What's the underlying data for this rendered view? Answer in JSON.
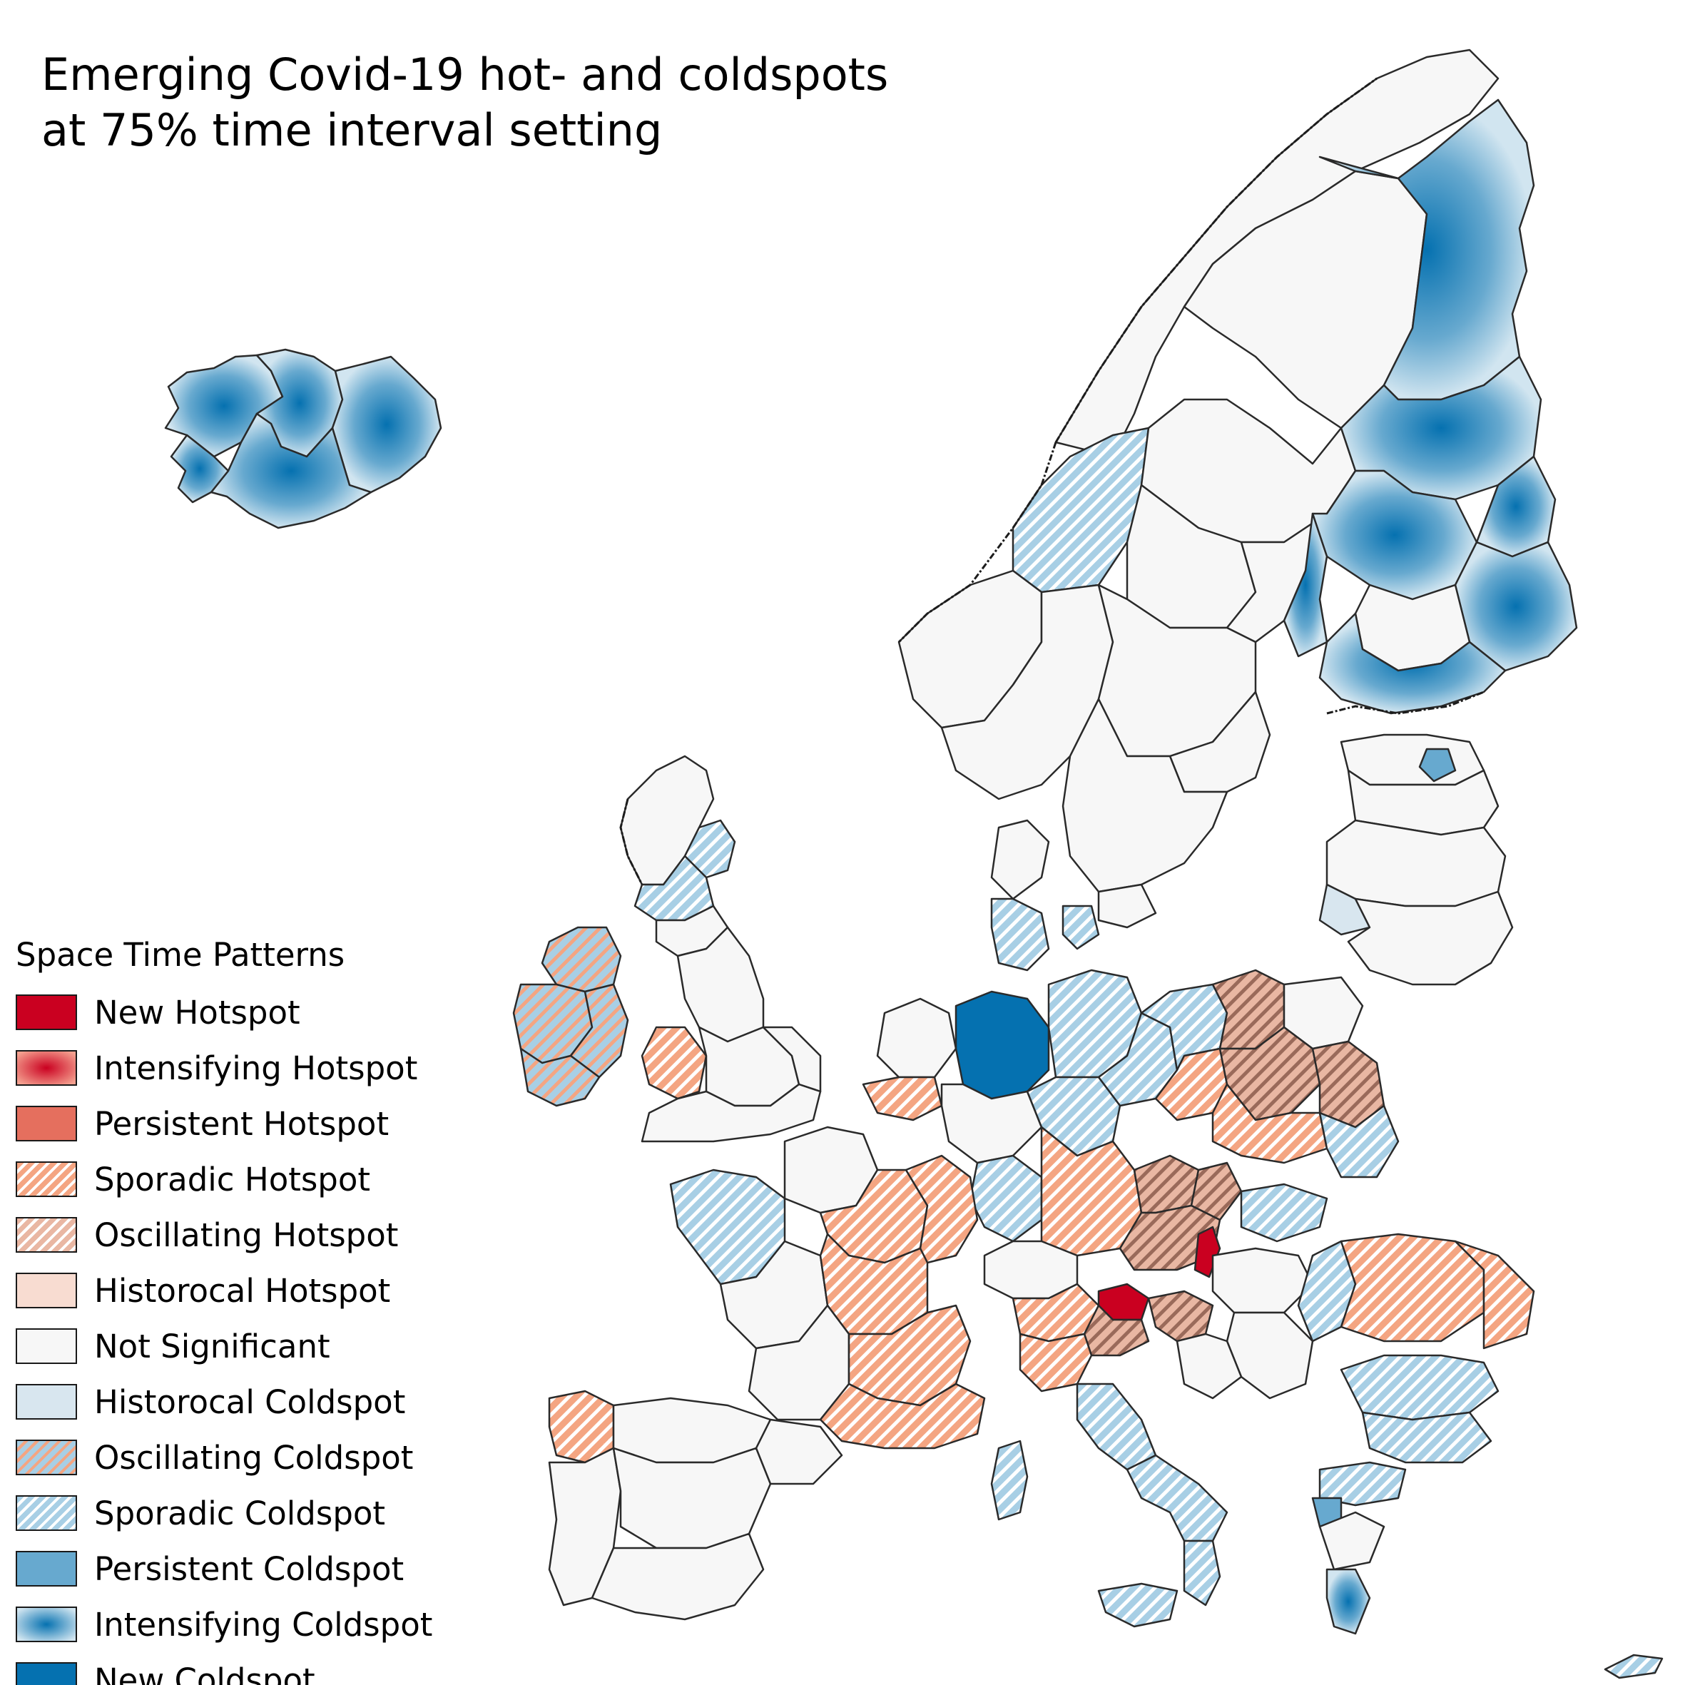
{
  "title": "Emerging Covid-19 hot- and coldspots\nat 75% time interval setting",
  "legend": {
    "title": "Space Time Patterns",
    "items": [
      {
        "label": "New Hotspot",
        "fill": "solid",
        "color": "#ca0020",
        "icon": "solid-dark-red-swatch"
      },
      {
        "label": "Intensifying Hotspot",
        "fill": "radial",
        "color": "#ca0020",
        "color2": "#f4a08f",
        "icon": "radial-red-swatch"
      },
      {
        "label": "Persistent Hotspot",
        "fill": "solid",
        "color": "#e56f5e",
        "icon": "solid-red-swatch"
      },
      {
        "label": "Sporadic Hotspot",
        "fill": "hatch",
        "color": "#f4a582",
        "icon": "hatched-orange-swatch"
      },
      {
        "label": "Oscillating Hotspot",
        "fill": "hatch",
        "color": "#e9b7a3",
        "icon": "hatched-rose-swatch"
      },
      {
        "label": "Historocal Hotspot",
        "fill": "solid",
        "color": "#f8dcd1",
        "icon": "solid-pale-rose-swatch"
      },
      {
        "label": "Not Significant",
        "fill": "solid",
        "color": "#f7f7f7",
        "icon": "solid-light-gray-swatch"
      },
      {
        "label": "Historocal Coldspot",
        "fill": "solid",
        "color": "#d8e6ef",
        "icon": "solid-pale-blue-swatch"
      },
      {
        "label": "Oscillating Coldspot",
        "fill": "hatch2",
        "color": "#a8cfe5",
        "color2": "#f4a582",
        "icon": "hatched-blue-orange-swatch"
      },
      {
        "label": "Sporadic Coldspot",
        "fill": "hatch",
        "color": "#a8cfe5",
        "icon": "hatched-light-blue-swatch"
      },
      {
        "label": "Persistent Coldspot",
        "fill": "solid",
        "color": "#67a9cf",
        "icon": "solid-blue-swatch"
      },
      {
        "label": "Intensifying Coldspot",
        "fill": "radial",
        "color": "#0571b0",
        "color2": "#d1e5f0",
        "icon": "radial-blue-swatch"
      },
      {
        "label": "New Coldspot",
        "fill": "solid",
        "color": "#0571b0",
        "icon": "solid-dark-blue-swatch"
      }
    ]
  },
  "colors": {
    "not_significant": "#f7f7f7",
    "border": "#2a2a2a",
    "background": "#ffffff"
  }
}
